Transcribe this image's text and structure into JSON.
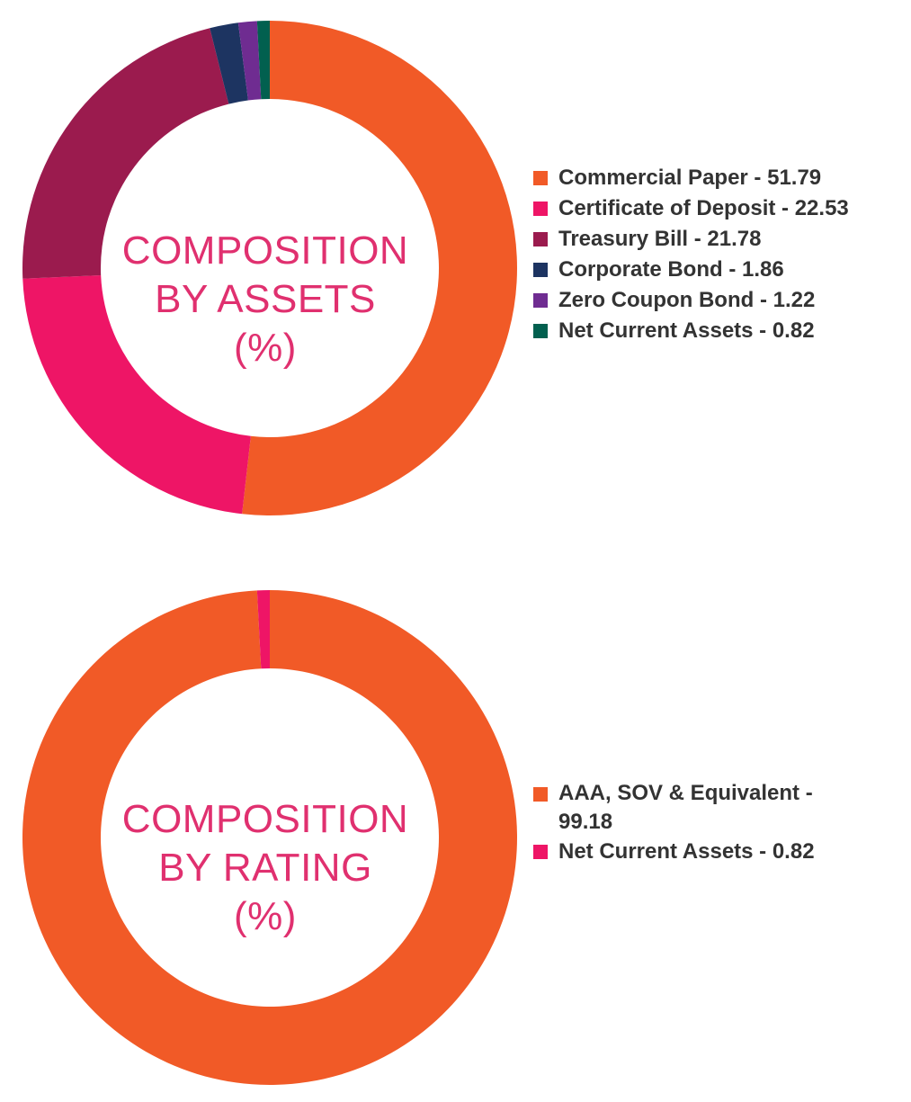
{
  "chart_data": [
    {
      "type": "pie",
      "donut": true,
      "center_label": [
        "COMPOSITION",
        "BY ASSETS",
        "(%)"
      ],
      "legend_position": "right",
      "slices": [
        {
          "label": "Commercial Paper - 51.79",
          "value": 51.79,
          "color": "#f15a27"
        },
        {
          "label": "Certificate of Deposit - 22.53",
          "value": 22.53,
          "color": "#ee1566"
        },
        {
          "label": "Treasury Bill - 21.78",
          "value": 21.78,
          "color": "#9b1b4e"
        },
        {
          "label": "Corporate Bond - 1.86",
          "value": 1.86,
          "color": "#1d3461"
        },
        {
          "label": "Zero Coupon Bond - 1.22",
          "value": 1.22,
          "color": "#6f2c91"
        },
        {
          "label": "Net Current Assets - 0.82",
          "value": 0.82,
          "color": "#02604f"
        }
      ]
    },
    {
      "type": "pie",
      "donut": true,
      "center_label": [
        "COMPOSITION",
        "BY RATING",
        "(%)"
      ],
      "legend_position": "right",
      "slices": [
        {
          "label": "AAA, SOV & Equivalent - 99.18",
          "value": 99.18,
          "color": "#f15a27"
        },
        {
          "label": "Net Current Assets - 0.82",
          "value": 0.82,
          "color": "#ee1566"
        }
      ]
    }
  ]
}
